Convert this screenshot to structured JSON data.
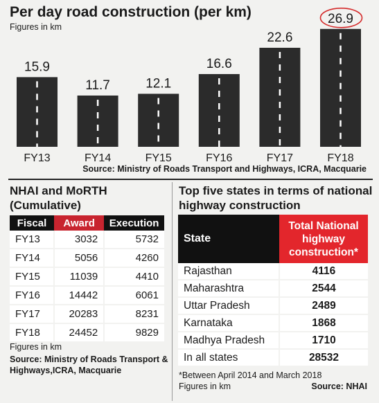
{
  "chart_data": {
    "type": "bar",
    "title": "Per day road construction (per km)",
    "subtitle": "Figures in km",
    "categories": [
      "FY13",
      "FY14",
      "FY15",
      "FY16",
      "FY17",
      "FY18"
    ],
    "values": [
      15.9,
      11.7,
      12.1,
      16.6,
      22.6,
      26.9
    ],
    "value_labels": [
      "15.9",
      "11.7",
      "12.1",
      "16.6",
      "22.6",
      "26.9"
    ],
    "highlighted_category": "FY18",
    "source": "Source: Ministry of Roads Transport and Highways, ICRA, Macquarie",
    "bar_color": "#2b2b2b",
    "dash_color": "#ffffff",
    "highlight_circle_color": "#d42a2a"
  },
  "table1": {
    "title": "NHAI and MoRTH (Cumulative)",
    "headers": [
      "Fiscal",
      "Award",
      "Execution"
    ],
    "rows": [
      [
        "FY13",
        "3032",
        "5732"
      ],
      [
        "FY14",
        "5056",
        "4260"
      ],
      [
        "FY15",
        "11039",
        "4410"
      ],
      [
        "FY16",
        "14442",
        "6061"
      ],
      [
        "FY17",
        "20283",
        "8231"
      ],
      [
        "FY18",
        "24452",
        "9829"
      ]
    ],
    "note": "Figures in km",
    "source": "Source: Ministry of Roads Transport & Highways,ICRA, Macquarie",
    "award_header_color": "#c8242f"
  },
  "table2": {
    "title": "Top five states in terms of national highway construction",
    "headers": [
      "State",
      "Total National highway construction*"
    ],
    "rows": [
      [
        "Rajasthan",
        "4116"
      ],
      [
        "Maharashtra",
        "2544"
      ],
      [
        "Uttar Pradesh",
        "2489"
      ],
      [
        "Karnataka",
        "1868"
      ],
      [
        "Madhya Pradesh",
        "1710"
      ],
      [
        "In all states",
        "28532"
      ]
    ],
    "footnote": "*Between April 2014 and March 2018",
    "note": "Figures in km",
    "source": "Source: NHAI",
    "total_header_color": "#e3262c"
  }
}
